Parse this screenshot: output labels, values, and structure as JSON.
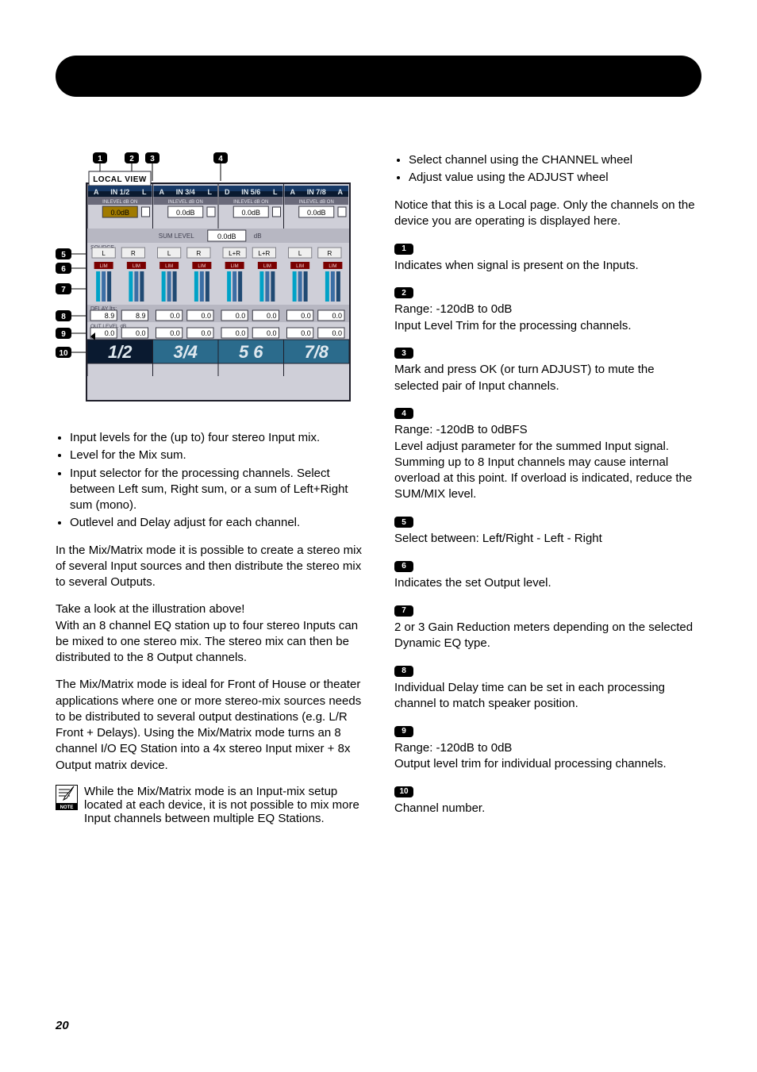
{
  "page": {
    "number": "20"
  },
  "screenshot": {
    "title": "LOCAL VIEW",
    "callouts_top": [
      "1",
      "2",
      "3",
      "4"
    ],
    "callouts_left": [
      "5",
      "6",
      "7",
      "8",
      "9",
      "10"
    ],
    "sum_level_label": "SUM LEVEL",
    "sum_level_value": "0.0dB",
    "sum_level_unit": "dB",
    "source_label": "SOURCE",
    "lim_label": "LIM",
    "delay_label": "DELAY lts:",
    "outlevel_label": "OUT LEVEL   dB",
    "ch_groups": [
      {
        "name": "IN 1/2",
        "left_tag": "A",
        "right_tag": "L",
        "in_on_label": "INLEVEL  dB  ON",
        "inlevel": "0.0dB",
        "source": [
          "L",
          "R"
        ],
        "delay": [
          "8.9",
          "8.9"
        ],
        "out": [
          "0.0",
          "0.0"
        ],
        "big": "1/2"
      },
      {
        "name": "IN 3/4",
        "left_tag": "A",
        "right_tag": "L",
        "in_on_label": "INLEVEL  dB  ON",
        "inlevel": "0.0dB",
        "source": [
          "L",
          "R"
        ],
        "delay": [
          "0.0",
          "0.0"
        ],
        "out": [
          "0.0",
          "0.0"
        ],
        "big": "3/4"
      },
      {
        "name": "IN 5/6",
        "left_tag": "D",
        "right_tag": "L",
        "in_on_label": "INLEVEL  dB  ON",
        "inlevel": "0.0dB",
        "source": [
          "L+R",
          "L+R"
        ],
        "delay": [
          "0.0",
          "0.0"
        ],
        "out": [
          "0.0",
          "0.0"
        ],
        "big": "5  6"
      },
      {
        "name": "IN 7/8",
        "left_tag": "A",
        "right_tag": "A",
        "in_on_label": "INLEVEL  dB  ON",
        "inlevel": "0.0dB",
        "source": [
          "L",
          "R"
        ],
        "delay": [
          "0.0",
          "0.0"
        ],
        "out": [
          "0.0",
          "0.0"
        ],
        "big": "7/8"
      }
    ],
    "colors": {
      "frame": "#1f1f2a",
      "panel": "#cfcfd8",
      "panel2": "#b7b7c2",
      "header_grad_a": "#173966",
      "header_grad_b": "#0a1a30",
      "inon": "#6a6a7a",
      "value_bg": "#2a2a34",
      "value_fg": "#e8e8ef",
      "inlevel_sel": "#a07a00",
      "lim": "#7a0000",
      "big_seg": "#2b6b8c",
      "big_seg_active": "#0a1a30",
      "big_text": "#dfe8ef",
      "meter_cyan": "#00a2c7",
      "meter_blue": "#3b6ea5",
      "meter_dblue": "#204a73",
      "lr_btn": "#efefef",
      "lr_btn_border": "#808088"
    }
  },
  "left": {
    "bullets1": [
      "Input levels for the (up to) four stereo Input mix.",
      "Level for the Mix sum.",
      "Input selector for the processing channels. Select between Left sum, Right sum, or a sum of Left+Right sum (mono).",
      "Outlevel and Delay adjust for each channel."
    ],
    "p1": "In the Mix/Matrix mode it is possible to create a stereo mix of several Input sources and then distribute the stereo mix to several Outputs.",
    "p2a": "Take a look at the illustration above!",
    "p2b": "With an 8 channel EQ station up to four stereo Inputs can be mixed to one stereo mix. The stereo mix can then be distributed to the 8 Output channels.",
    "p3": "The Mix/Matrix mode is ideal for Front of House or theater applications where one or more stereo-mix sources needs to be distributed to several output destinations (e.g. L/R Front + Delays). Using the Mix/Matrix mode turns an 8 channel I/O EQ Station into a 4x stereo Input mixer + 8x Output matrix device.",
    "note": "While the Mix/Matrix mode is an Input-mix setup located at each device, it is not possible to mix more Input channels between multiple EQ Stations."
  },
  "right": {
    "bullets_top": [
      "Select channel using the CHANNEL wheel",
      "Adjust value using the ADJUST wheel"
    ],
    "intro": "Notice that this is a Local page. Only the channels on the device you are operating is displayed here.",
    "items": [
      {
        "num": "1",
        "lines": [
          "Indicates when signal is present on the Inputs."
        ]
      },
      {
        "num": "2",
        "lines": [
          "Range: -120dB to 0dB",
          "Input Level Trim for the processing channels."
        ]
      },
      {
        "num": "3",
        "lines": [
          "Mark and press OK (or turn ADJUST) to mute the selected pair of Input channels."
        ]
      },
      {
        "num": "4",
        "lines": [
          "Range: -120dB to 0dBFS",
          "Level adjust parameter for the summed Input signal. Summing up to 8 Input channels may cause internal overload at this point. If overload is indicated, reduce the SUM/MIX level."
        ]
      },
      {
        "num": "5",
        "lines": [
          "Select between: Left/Right - Left - Right"
        ]
      },
      {
        "num": "6",
        "lines": [
          "Indicates the set Output level."
        ]
      },
      {
        "num": "7",
        "lines": [
          "2 or 3 Gain Reduction meters depending on the selected Dynamic EQ type."
        ]
      },
      {
        "num": "8",
        "lines": [
          "Individual Delay time can be set in each processing channel to match speaker position."
        ]
      },
      {
        "num": "9",
        "lines": [
          "Range: -120dB to 0dB",
          "Output level trim for individual processing channels."
        ]
      },
      {
        "num": "10",
        "lines": [
          "Channel number."
        ]
      }
    ]
  }
}
